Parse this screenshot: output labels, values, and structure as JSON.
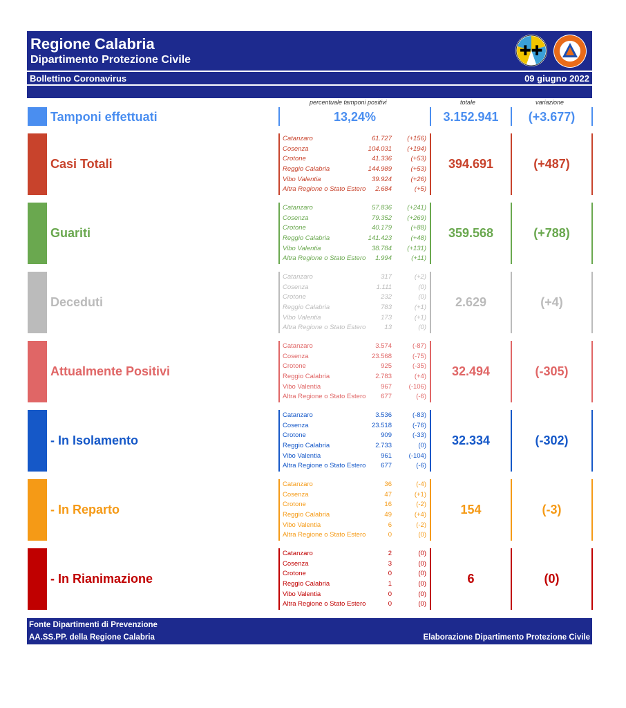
{
  "header": {
    "title": "Regione Calabria",
    "subtitle": "Dipartimento Protezione Civile",
    "bulletin": "Bollettino Coronavirus",
    "date": "09 giugno 2022"
  },
  "columns": {
    "percent": "percentuale tamponi positivi",
    "total": "totale",
    "variation": "variazione"
  },
  "tamponi": {
    "label": "Tamponi effettuati",
    "percent": "13,24%",
    "total": "3.152.941",
    "variation": "(+3.677)",
    "color": "#4a8ef0"
  },
  "sections": [
    {
      "label": "Casi Totali",
      "total": "394.691",
      "variation": "(+487)",
      "color": "#c8432c",
      "italic": true,
      "rows": [
        [
          "Catanzaro",
          "61.727",
          "(+156)"
        ],
        [
          "Cosenza",
          "104.031",
          "(+194)"
        ],
        [
          "Crotone",
          "41.336",
          "(+53)"
        ],
        [
          "Reggio Calabria",
          "144.989",
          "(+53)"
        ],
        [
          "Vibo Valentia",
          "39.924",
          "(+26)"
        ],
        [
          "Altra Regione o Stato Estero",
          "2.684",
          "(+5)"
        ]
      ]
    },
    {
      "label": "Guariti",
      "total": "359.568",
      "variation": "(+788)",
      "color": "#6aa84f",
      "italic": true,
      "rows": [
        [
          "Catanzaro",
          "57.836",
          "(+241)"
        ],
        [
          "Cosenza",
          "79.352",
          "(+269)"
        ],
        [
          "Crotone",
          "40.179",
          "(+88)"
        ],
        [
          "Reggio Calabria",
          "141.423",
          "(+48)"
        ],
        [
          "Vibo Valentia",
          "38.784",
          "(+131)"
        ],
        [
          "Altra Regione o Stato Estero",
          "1.994",
          "(+11)"
        ]
      ]
    },
    {
      "label": "Deceduti",
      "total": "2.629",
      "variation": "(+4)",
      "color": "#bbbbbb",
      "italic": true,
      "rows": [
        [
          "Catanzaro",
          "317",
          "(+2)"
        ],
        [
          "Cosenza",
          "1.111",
          "(0)"
        ],
        [
          "Crotone",
          "232",
          "(0)"
        ],
        [
          "Reggio Calabria",
          "783",
          "(+1)"
        ],
        [
          "Vibo Valentia",
          "173",
          "(+1)"
        ],
        [
          "Altra Regione o Stato Estero",
          "13",
          "(0)"
        ]
      ]
    },
    {
      "label": "Attualmente Positivi",
      "total": "32.494",
      "variation": "(-305)",
      "color": "#e06666",
      "italic": false,
      "rows": [
        [
          "Catanzaro",
          "3.574",
          "(-87)"
        ],
        [
          "Cosenza",
          "23.568",
          "(-75)"
        ],
        [
          "Crotone",
          "925",
          "(-35)"
        ],
        [
          "Reggio Calabria",
          "2.783",
          "(+4)"
        ],
        [
          "Vibo Valentia",
          "967",
          "(-106)"
        ],
        [
          "Altra Regione o Stato Estero",
          "677",
          "(-6)"
        ]
      ]
    },
    {
      "label": " - In Isolamento",
      "total": "32.334",
      "variation": "(-302)",
      "color": "#1558c8",
      "italic": false,
      "rows": [
        [
          "Catanzaro",
          "3.536",
          "(-83)"
        ],
        [
          "Cosenza",
          "23.518",
          "(-76)"
        ],
        [
          "Crotone",
          "909",
          "(-33)"
        ],
        [
          "Reggio Calabria",
          "2.733",
          "(0)"
        ],
        [
          "Vibo Valentia",
          "961",
          "(-104)"
        ],
        [
          "Altra Regione o Stato Estero",
          "677",
          "(-6)"
        ]
      ]
    },
    {
      "label": " - In Reparto",
      "total": "154",
      "variation": "(-3)",
      "color": "#f59a16",
      "italic": false,
      "rows": [
        [
          "Catanzaro",
          "36",
          "(-4)"
        ],
        [
          "Cosenza",
          "47",
          "(+1)"
        ],
        [
          "Crotone",
          "16",
          "(-2)"
        ],
        [
          "Reggio Calabria",
          "49",
          "(+4)"
        ],
        [
          "Vibo Valentia",
          "6",
          "(-2)"
        ],
        [
          "Altra Regione o Stato Estero",
          "0",
          "(0)"
        ]
      ]
    },
    {
      "label": " - In Rianimazione",
      "total": "6",
      "variation": "(0)",
      "color": "#c00000",
      "italic": false,
      "rows": [
        [
          "Catanzaro",
          "2",
          "(0)"
        ],
        [
          "Cosenza",
          "3",
          "(0)"
        ],
        [
          "Crotone",
          "0",
          "(0)"
        ],
        [
          "Reggio Calabria",
          "1",
          "(0)"
        ],
        [
          "Vibo Valentia",
          "0",
          "(0)"
        ],
        [
          "Altra Regione o Stato Estero",
          "0",
          "(0)"
        ]
      ]
    }
  ],
  "footer": {
    "line1": "Fonte Dipartimenti di Prevenzione",
    "line2": "AA.SS.PP.  della Regione Calabria",
    "right": "Elaborazione Dipartimento Protezione Civile"
  }
}
